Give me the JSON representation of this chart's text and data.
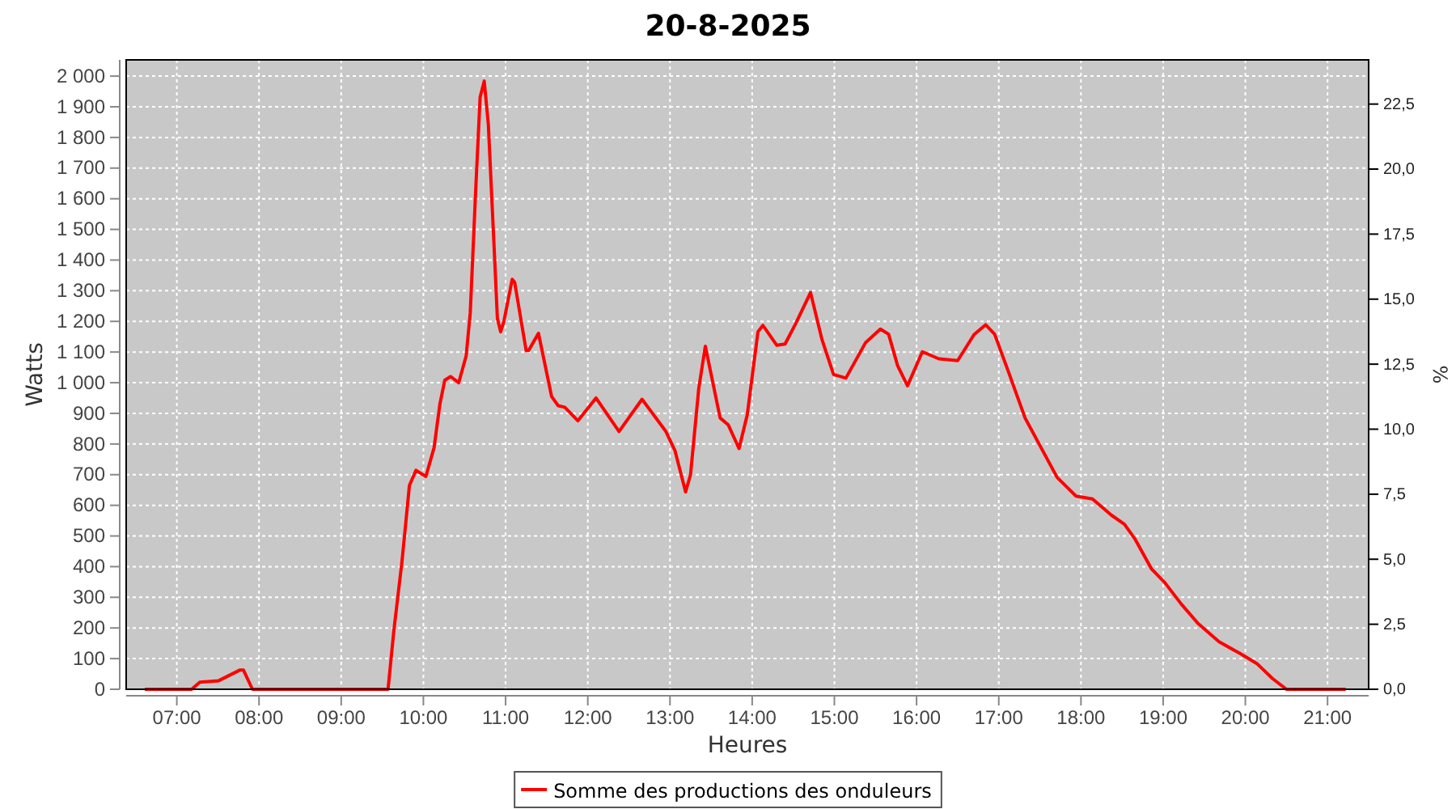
{
  "chart_data": {
    "type": "line",
    "title": "20-8-2025",
    "xlabel": "Heures",
    "ylabel": "Watts",
    "y2label": "%",
    "xlim": [
      6.384,
      21.5
    ],
    "xticks": [
      {
        "value": 7,
        "label": "07:00"
      },
      {
        "value": 8,
        "label": "08:00"
      },
      {
        "value": 9,
        "label": "09:00"
      },
      {
        "value": 10,
        "label": "10:00"
      },
      {
        "value": 11,
        "label": "11:00"
      },
      {
        "value": 12,
        "label": "12:00"
      },
      {
        "value": 13,
        "label": "13:00"
      },
      {
        "value": 14,
        "label": "14:00"
      },
      {
        "value": 15,
        "label": "15:00"
      },
      {
        "value": 16,
        "label": "16:00"
      },
      {
        "value": 17,
        "label": "17:00"
      },
      {
        "value": 18,
        "label": "18:00"
      },
      {
        "value": 19,
        "label": "19:00"
      },
      {
        "value": 20,
        "label": "20:00"
      },
      {
        "value": 21,
        "label": "21:00"
      }
    ],
    "ylim": [
      0,
      2053
    ],
    "yticks": [
      0,
      100,
      200,
      300,
      400,
      500,
      600,
      700,
      800,
      900,
      {
        "value": 1000,
        "label": "1 000"
      },
      {
        "value": 1100,
        "label": "1 100"
      },
      {
        "value": 1200,
        "label": "1 200"
      },
      {
        "value": 1300,
        "label": "1 300"
      },
      {
        "value": 1400,
        "label": "1 400"
      },
      {
        "value": 1500,
        "label": "1 500"
      },
      {
        "value": 1600,
        "label": "1 600"
      },
      {
        "value": 1700,
        "label": "1 700"
      },
      {
        "value": 1800,
        "label": "1 800"
      },
      {
        "value": 1900,
        "label": "1 900"
      },
      {
        "value": 2000,
        "label": "2 000"
      }
    ],
    "y2lim": [
      0,
      24.2
    ],
    "y2ticks": [
      {
        "value": 0,
        "label": "0,0"
      },
      {
        "value": 2.5,
        "label": "2,5"
      },
      {
        "value": 5,
        "label": "5,0"
      },
      {
        "value": 7.5,
        "label": "7,5"
      },
      {
        "value": 10,
        "label": "10,0"
      },
      {
        "value": 12.5,
        "label": "12,5"
      },
      {
        "value": 15,
        "label": "15,0"
      },
      {
        "value": 17.5,
        "label": "17,5"
      },
      {
        "value": 20,
        "label": "20,0"
      },
      {
        "value": 22.5,
        "label": "22,5"
      }
    ],
    "grid": true,
    "legend": "bottom",
    "marker": "none",
    "line_style": "solid",
    "series": [
      {
        "name": "Somme des productions des onduleurs",
        "color": "#ff0000",
        "x": [
          6.61,
          7.18,
          7.28,
          7.51,
          7.77,
          7.81,
          7.92,
          9.57,
          9.64,
          9.74,
          9.83,
          9.91,
          10.03,
          10.13,
          10.2,
          10.26,
          10.33,
          10.43,
          10.52,
          10.57,
          10.64,
          10.69,
          10.74,
          10.79,
          10.87,
          10.9,
          10.94,
          10.98,
          11.08,
          11.11,
          11.25,
          11.28,
          11.4,
          11.56,
          11.64,
          11.72,
          11.88,
          12.1,
          12.38,
          12.66,
          12.95,
          13.06,
          13.19,
          13.25,
          13.35,
          13.43,
          13.61,
          13.71,
          13.84,
          13.94,
          14.07,
          14.13,
          14.3,
          14.4,
          14.53,
          14.71,
          14.85,
          14.99,
          15.14,
          15.38,
          15.56,
          15.66,
          15.77,
          15.89,
          16.07,
          16.27,
          16.5,
          16.7,
          16.84,
          16.95,
          17.12,
          17.32,
          17.71,
          17.94,
          18.14,
          18.37,
          18.53,
          18.66,
          18.86,
          19.02,
          19.22,
          19.42,
          19.68,
          19.94,
          20.14,
          20.33,
          20.5,
          21.22
        ],
        "values": [
          0,
          0,
          23,
          28,
          63,
          63,
          0,
          0,
          190,
          418,
          665,
          714,
          694,
          788,
          929,
          1008,
          1020,
          1000,
          1087,
          1228,
          1650,
          1931,
          1984,
          1843,
          1386,
          1210,
          1166,
          1201,
          1337,
          1328,
          1105,
          1105,
          1161,
          955,
          925,
          920,
          876,
          950,
          841,
          946,
          841,
          779,
          644,
          700,
          981,
          1119,
          885,
          862,
          785,
          895,
          1166,
          1187,
          1122,
          1126,
          1193,
          1294,
          1140,
          1027,
          1015,
          1131,
          1175,
          1158,
          1055,
          990,
          1101,
          1078,
          1072,
          1157,
          1189,
          1158,
          1034,
          885,
          691,
          630,
          621,
          568,
          538,
          489,
          392,
          348,
          278,
          216,
          155,
          116,
          84,
          35,
          0,
          0
        ]
      }
    ]
  }
}
